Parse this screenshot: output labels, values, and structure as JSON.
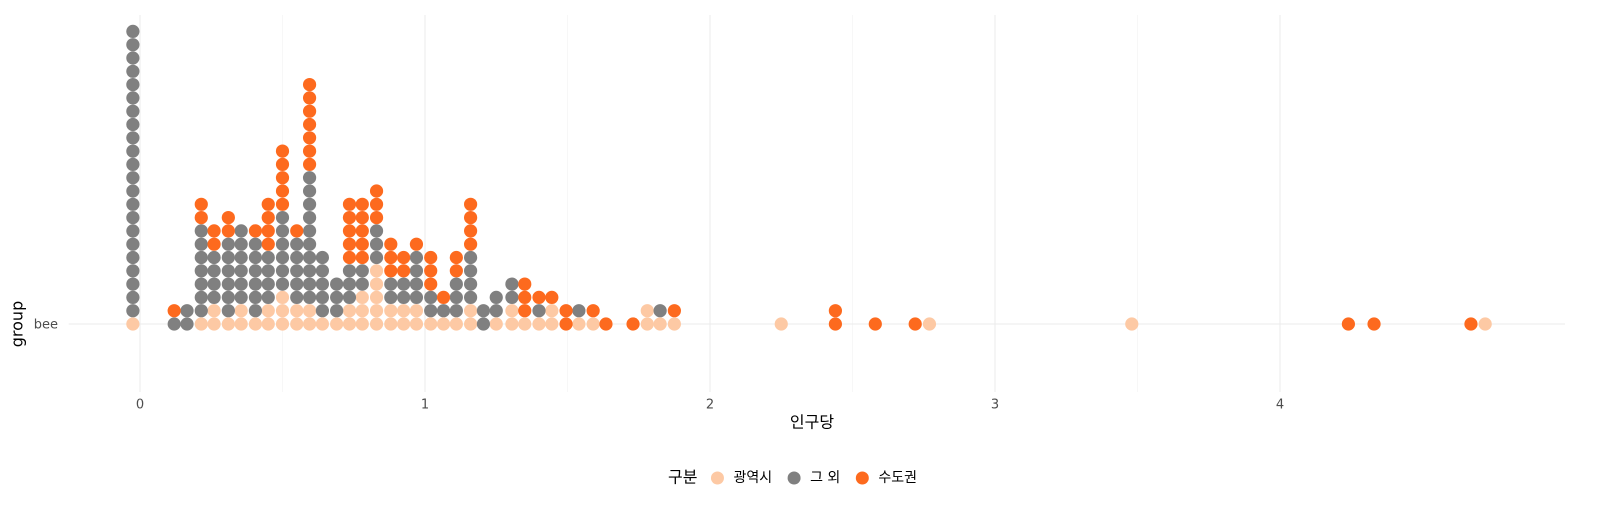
{
  "chart_data": {
    "type": "beeswarm",
    "x_label": "인구당",
    "y_label": "group",
    "categories": [
      "bee"
    ],
    "legend_title": "구분",
    "legend": "bottom",
    "grid": true,
    "xlim": [
      -0.25,
      5.0
    ],
    "xticks": [
      0,
      1,
      2,
      3,
      4
    ],
    "series": [
      {
        "name": "광역시",
        "color": "#fdc9a4",
        "x": [
          -0.025,
          0.215,
          0.26,
          0.26,
          0.31,
          0.355,
          0.355,
          0.405,
          0.45,
          0.45,
          0.5,
          0.5,
          0.5,
          0.55,
          0.55,
          0.595,
          0.595,
          0.64,
          0.69,
          0.735,
          0.735,
          0.78,
          0.78,
          0.78,
          0.83,
          0.83,
          0.83,
          0.83,
          0.83,
          0.88,
          0.88,
          0.925,
          0.925,
          0.97,
          0.97,
          1.02,
          1.065,
          1.11,
          1.16,
          1.16,
          1.25,
          1.305,
          1.305,
          1.35,
          1.4,
          1.445,
          1.445,
          1.54,
          1.59,
          1.78,
          1.78,
          1.825,
          1.875,
          2.25,
          2.77,
          3.48,
          4.72
        ]
      },
      {
        "name": "그 외",
        "color": "#808080",
        "x": [
          -0.025,
          -0.025,
          -0.025,
          -0.025,
          -0.025,
          -0.025,
          -0.025,
          -0.025,
          -0.025,
          -0.025,
          -0.025,
          -0.025,
          -0.025,
          -0.025,
          -0.025,
          -0.025,
          -0.025,
          -0.025,
          -0.025,
          -0.025,
          -0.025,
          -0.025,
          0.12,
          0.165,
          0.165,
          0.215,
          0.215,
          0.215,
          0.215,
          0.215,
          0.215,
          0.215,
          0.26,
          0.26,
          0.26,
          0.26,
          0.31,
          0.31,
          0.31,
          0.31,
          0.31,
          0.31,
          0.355,
          0.355,
          0.355,
          0.355,
          0.355,
          0.355,
          0.405,
          0.405,
          0.405,
          0.405,
          0.405,
          0.405,
          0.45,
          0.45,
          0.45,
          0.45,
          0.5,
          0.5,
          0.5,
          0.5,
          0.5,
          0.5,
          0.55,
          0.55,
          0.55,
          0.55,
          0.55,
          0.595,
          0.595,
          0.595,
          0.595,
          0.595,
          0.595,
          0.595,
          0.595,
          0.595,
          0.595,
          0.64,
          0.64,
          0.64,
          0.64,
          0.64,
          0.69,
          0.69,
          0.69,
          0.735,
          0.735,
          0.735,
          0.78,
          0.78,
          0.83,
          0.83,
          0.83,
          0.88,
          0.88,
          0.925,
          0.925,
          0.97,
          0.97,
          0.97,
          0.97,
          1.02,
          1.02,
          1.065,
          1.11,
          1.11,
          1.11,
          1.16,
          1.16,
          1.16,
          1.16,
          1.205,
          1.205,
          1.25,
          1.25,
          1.305,
          1.305,
          1.4,
          1.54,
          1.825
        ]
      },
      {
        "name": "수도권",
        "color": "#fd6a1e",
        "x": [
          0.12,
          0.215,
          0.215,
          0.26,
          0.26,
          0.31,
          0.31,
          0.405,
          0.45,
          0.45,
          0.45,
          0.45,
          0.5,
          0.5,
          0.5,
          0.5,
          0.5,
          0.55,
          0.595,
          0.595,
          0.595,
          0.595,
          0.595,
          0.595,
          0.595,
          0.735,
          0.735,
          0.735,
          0.735,
          0.735,
          0.78,
          0.78,
          0.78,
          0.78,
          0.78,
          0.83,
          0.83,
          0.83,
          0.88,
          0.88,
          0.88,
          0.925,
          0.925,
          0.97,
          1.02,
          1.02,
          1.02,
          1.065,
          1.11,
          1.11,
          1.16,
          1.16,
          1.16,
          1.16,
          1.35,
          1.35,
          1.35,
          1.4,
          1.445,
          1.495,
          1.495,
          1.59,
          1.635,
          1.73,
          1.875,
          2.44,
          2.44,
          2.58,
          2.72,
          4.24,
          4.33,
          4.67
        ]
      }
    ]
  }
}
